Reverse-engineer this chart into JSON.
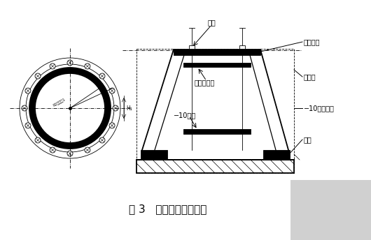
{
  "title": "图 3   钔管柱脚底板固定",
  "bg_color": "#ffffff",
  "line_color": "#000000",
  "labels": {
    "anchor": "锄栓",
    "base_plate": "柱脚底板",
    "pile_cap": "桶承台",
    "angle_support": "−10固定支撑",
    "pile_head": "桶头",
    "anchor_plate": "锄栓定位板",
    "angle_fix": "−10固定"
  },
  "figsize": [
    5.3,
    3.44
  ],
  "dpi": 100
}
